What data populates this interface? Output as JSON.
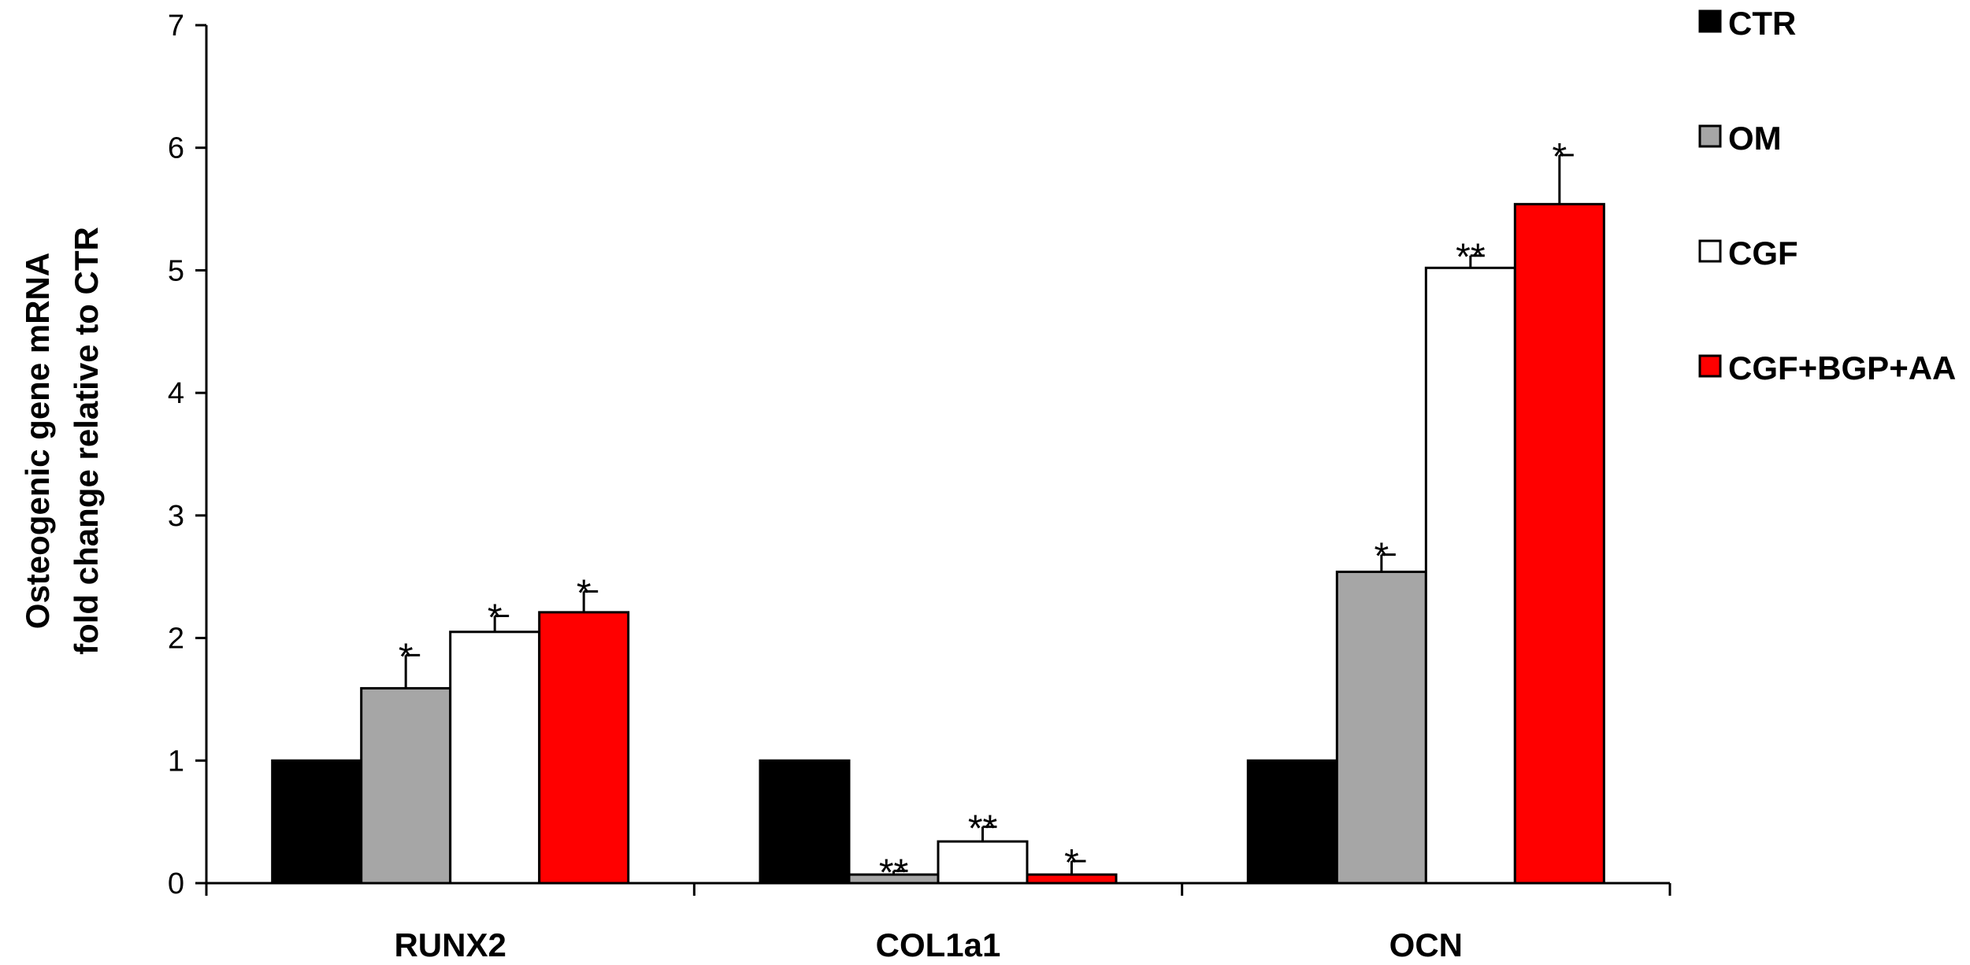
{
  "chart_data": {
    "type": "bar",
    "title": "",
    "xlabel": "",
    "ylabel_lines": [
      "Osteogenic gene mRNA",
      "fold change relative to CTR"
    ],
    "ylim": [
      0,
      7
    ],
    "yticks": [
      0,
      1,
      2,
      3,
      4,
      5,
      6,
      7
    ],
    "yticks_labels": [
      "0",
      "1",
      "2",
      "3",
      "4",
      "5",
      "6",
      "7"
    ],
    "categories": [
      "RUNX2",
      "COL1a1",
      "OCN"
    ],
    "legend_position": "top-right",
    "series": [
      {
        "name": "CTR",
        "color": "#000000",
        "values": [
          1.0,
          1.0,
          1.0
        ],
        "errors": [
          0,
          0,
          0
        ],
        "significance": [
          "",
          "",
          ""
        ]
      },
      {
        "name": "OM",
        "color": "#a6a6a6",
        "values": [
          1.59,
          0.07,
          2.54
        ],
        "errors": [
          0.27,
          0.03,
          0.14
        ],
        "significance": [
          "*",
          "**",
          "*"
        ]
      },
      {
        "name": "CGF",
        "color": "#ffffff",
        "values": [
          2.05,
          0.34,
          5.02
        ],
        "errors": [
          0.13,
          0.12,
          0.1
        ],
        "significance": [
          "*",
          "**",
          "**"
        ]
      },
      {
        "name": "CGF+BGP+AA",
        "color": "#ff0000",
        "values": [
          2.21,
          0.07,
          5.54
        ],
        "errors": [
          0.17,
          0.11,
          0.4
        ],
        "significance": [
          "*",
          "*",
          "*"
        ]
      }
    ]
  }
}
